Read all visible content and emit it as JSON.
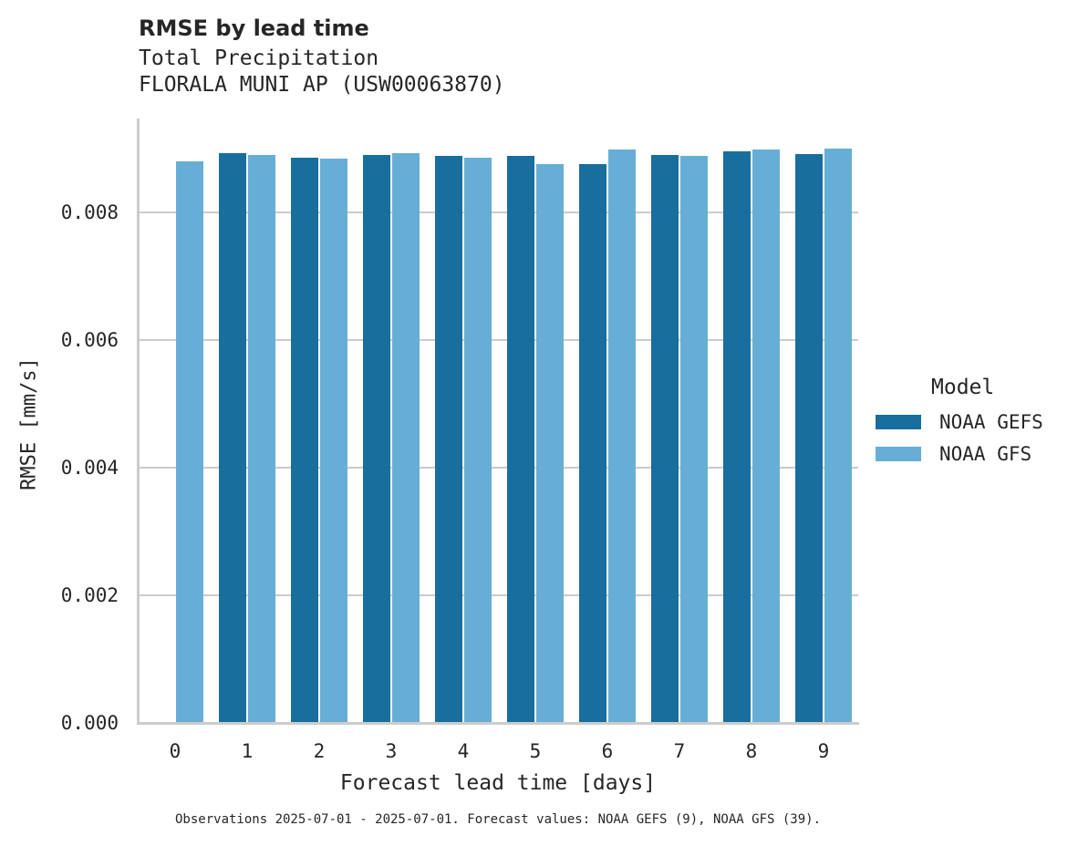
{
  "title": "RMSE by lead time",
  "subtitle_lines": [
    "Total Precipitation",
    "FLORALA MUNI AP (USW00063870)"
  ],
  "footnote": "Observations 2025-07-01 - 2025-07-01. Forecast values: NOAA GEFS (9), NOAA GFS (39).",
  "colors": {
    "NOAA GEFS": "#186e9c",
    "NOAA GFS": "#67aed6",
    "grid": "#cccccc",
    "text": "#262626"
  },
  "legend": {
    "title": "Model",
    "items": [
      "NOAA GEFS",
      "NOAA GFS"
    ]
  },
  "chart_data": {
    "type": "bar",
    "title": "RMSE by lead time",
    "subtitle": "Total Precipitation / FLORALA MUNI AP (USW00063870)",
    "xlabel": "Forecast lead time [days]",
    "ylabel": "RMSE [mm/s]",
    "categories": [
      "0",
      "1",
      "2",
      "3",
      "4",
      "5",
      "6",
      "7",
      "8",
      "9"
    ],
    "series": [
      {
        "name": "NOAA GEFS",
        "values": [
          null,
          0.00893,
          0.00886,
          0.0089,
          0.00889,
          0.00889,
          0.00876,
          0.0089,
          0.00896,
          0.00891
        ]
      },
      {
        "name": "NOAA GFS",
        "values": [
          0.0088,
          0.0089,
          0.00884,
          0.00893,
          0.00886,
          0.00876,
          0.00899,
          0.00889,
          0.00899,
          0.009
        ]
      }
    ],
    "yticks": [
      "0.000",
      "0.002",
      "0.004",
      "0.006",
      "0.008"
    ],
    "ylim": [
      0,
      0.0095
    ],
    "grid": "horizontal",
    "legend_position": "right"
  }
}
